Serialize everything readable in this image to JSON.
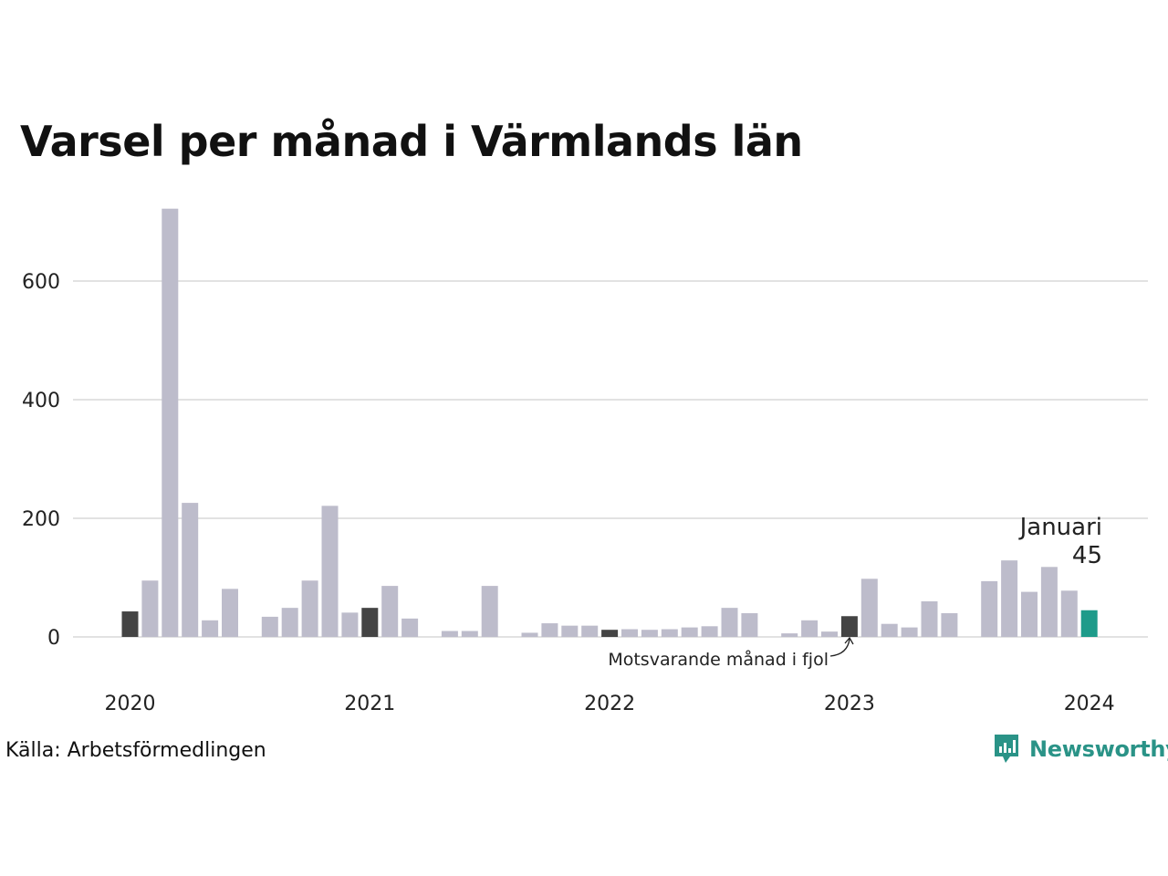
{
  "title": "Varsel per månad i Värmlands län",
  "source": "Källa: Arbetsförmedlingen",
  "brand": "Newsworthy",
  "colors": {
    "bar": "#bdbccb",
    "previous_year": "#444444",
    "current": "#1e9b8a",
    "grid": "#e2e2e2",
    "brand": "#2a9387"
  },
  "chart_data": {
    "type": "bar",
    "title": "Varsel per månad i Värmlands län",
    "ylim": [
      0,
      750
    ],
    "yticks": [
      0,
      200,
      400,
      600
    ],
    "xticks": [
      "2020",
      "2021",
      "2022",
      "2023",
      "2024"
    ],
    "grid": true,
    "categories": [
      "2020-01",
      "2020-02",
      "2020-03",
      "2020-04",
      "2020-05",
      "2020-06",
      "2020-07",
      "2020-08",
      "2020-09",
      "2020-10",
      "2020-11",
      "2020-12",
      "2021-01",
      "2021-02",
      "2021-03",
      "2021-04",
      "2021-05",
      "2021-06",
      "2021-07",
      "2021-08",
      "2021-09",
      "2021-10",
      "2021-11",
      "2021-12",
      "2022-01",
      "2022-02",
      "2022-03",
      "2022-04",
      "2022-05",
      "2022-06",
      "2022-07",
      "2022-08",
      "2022-09",
      "2022-10",
      "2022-11",
      "2022-12",
      "2023-01",
      "2023-02",
      "2023-03",
      "2023-04",
      "2023-05",
      "2023-06",
      "2023-07",
      "2023-08",
      "2023-09",
      "2023-10",
      "2023-11",
      "2023-12",
      "2024-01"
    ],
    "values": [
      43,
      95,
      722,
      226,
      28,
      81,
      0,
      34,
      49,
      95,
      221,
      41,
      49,
      86,
      31,
      0,
      10,
      10,
      86,
      0,
      7,
      23,
      19,
      19,
      12,
      13,
      12,
      13,
      16,
      18,
      49,
      40,
      0,
      6,
      28,
      9,
      35,
      98,
      22,
      16,
      60,
      40,
      0,
      94,
      129,
      76,
      118,
      78,
      45
    ],
    "previous_year_indices": [
      0,
      12,
      24,
      36
    ],
    "highlight": {
      "index": 48,
      "label": "Januari",
      "value": "45"
    },
    "annotation": "Motsvarande månad i fjol"
  }
}
